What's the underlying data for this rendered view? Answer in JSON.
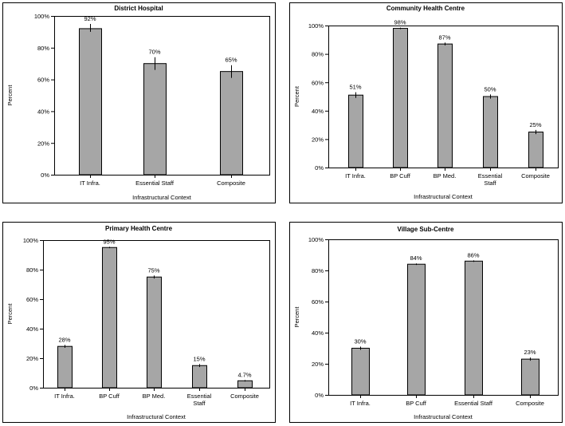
{
  "chart_data": [
    {
      "type": "bar",
      "title": "District Hospital",
      "xlabel": "Infrastructural Context",
      "ylabel": "Percent",
      "ylim": [
        0,
        100
      ],
      "y_ticks": [
        "0%",
        "20%",
        "40%",
        "60%",
        "80%",
        "100%"
      ],
      "categories": [
        [
          "IT Infra."
        ],
        [
          "Essential Staff"
        ],
        [
          "Composite"
        ]
      ],
      "values": [
        92,
        70,
        65
      ],
      "value_labels": [
        "92%",
        "70%",
        "65%"
      ],
      "error_bars": [
        [
          90,
          95
        ],
        [
          66,
          74
        ],
        [
          61,
          69
        ]
      ]
    },
    {
      "type": "bar",
      "title": "Community Health Centre",
      "xlabel": "Infrastructural Context",
      "ylabel": "Percent",
      "ylim": [
        0,
        100
      ],
      "y_ticks": [
        "0%",
        "20%",
        "40%",
        "60%",
        "80%",
        "100%"
      ],
      "categories": [
        [
          "IT Infra."
        ],
        [
          "BP Cuff"
        ],
        [
          "BP Med."
        ],
        [
          "Essential",
          "Staff"
        ],
        [
          "Composite"
        ]
      ],
      "values": [
        51,
        98,
        87,
        50,
        25
      ],
      "value_labels": [
        "51%",
        "98%",
        "87%",
        "50%",
        "25%"
      ],
      "error_bars": [
        [
          49,
          53
        ],
        [
          97.5,
          98.5
        ],
        [
          86,
          88
        ],
        [
          48.5,
          51.5
        ],
        [
          23.5,
          26.5
        ]
      ]
    },
    {
      "type": "bar",
      "title": "Primary Health Centre",
      "xlabel": "Infrastructural Context",
      "ylabel": "Percent",
      "ylim": [
        0,
        100
      ],
      "y_ticks": [
        "0%",
        "20%",
        "40%",
        "60%",
        "80%",
        "100%"
      ],
      "categories": [
        [
          "IT Infra."
        ],
        [
          "BP Cuff"
        ],
        [
          "BP Med."
        ],
        [
          "Essential",
          "Staff"
        ],
        [
          "Composite"
        ]
      ],
      "values": [
        28,
        95,
        75,
        15,
        4.7
      ],
      "value_labels": [
        "28%",
        "95%",
        "75%",
        "15%",
        "4.7%"
      ],
      "error_bars": [
        [
          27,
          29
        ],
        [
          94.5,
          95.5
        ],
        [
          74,
          76
        ],
        [
          14,
          16
        ],
        [
          4.2,
          5.2
        ]
      ]
    },
    {
      "type": "bar",
      "title": "Village Sub-Centre",
      "xlabel": "Infrastructural Context",
      "ylabel": "Percent",
      "ylim": [
        0,
        100
      ],
      "y_ticks": [
        "0%",
        "20%",
        "40%",
        "60%",
        "80%",
        "100%"
      ],
      "categories": [
        [
          "IT Infra."
        ],
        [
          "BP Cuff"
        ],
        [
          "Essential Staff"
        ],
        [
          "Composite"
        ]
      ],
      "values": [
        30,
        84,
        86,
        23
      ],
      "value_labels": [
        "30%",
        "84%",
        "86%",
        "23%"
      ],
      "error_bars": [
        [
          29,
          31
        ],
        [
          83.5,
          84.5
        ],
        [
          85.5,
          86.5
        ],
        [
          22,
          24
        ]
      ]
    }
  ]
}
